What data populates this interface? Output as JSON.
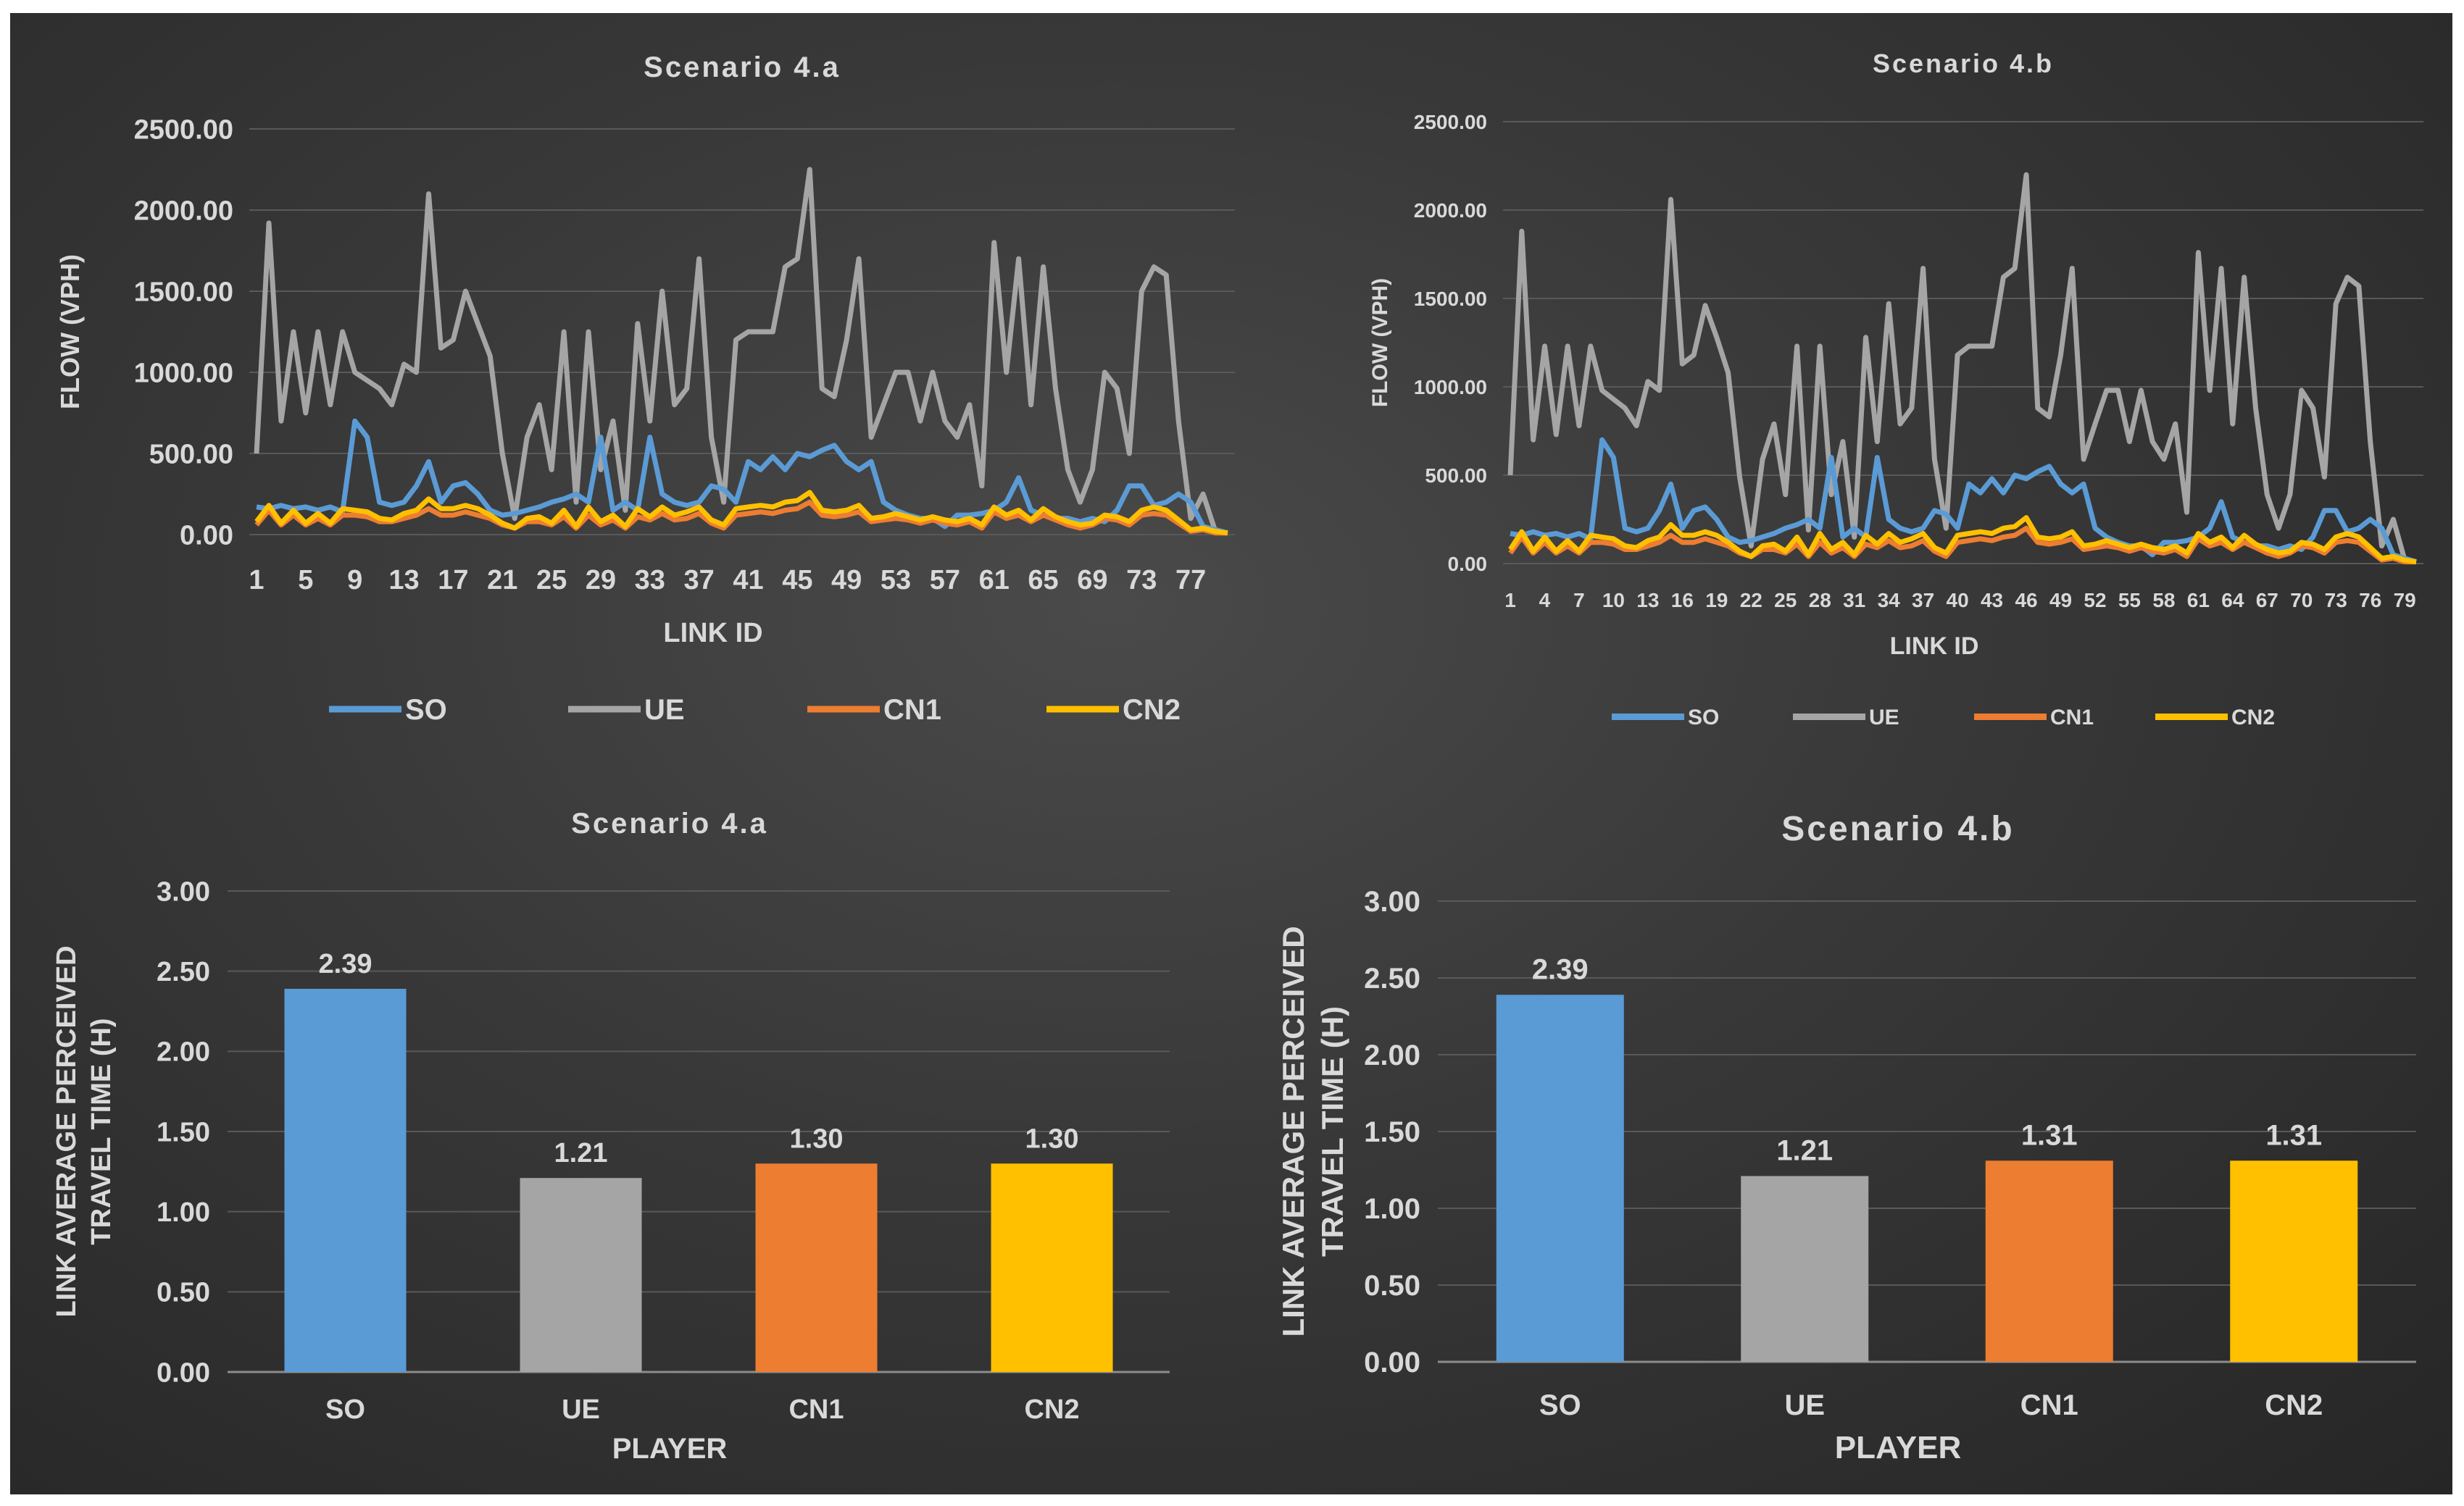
{
  "theme": {
    "background": "#333333",
    "text": "#d9d9d9",
    "grid": "#595959",
    "colors": {
      "SO": "#5b9bd5",
      "UE": "#a5a5a5",
      "CN1": "#ed7d31",
      "CN2": "#ffc000"
    }
  },
  "chart_data": [
    {
      "type": "line",
      "title": "Scenario 4.a",
      "xlabel": "LINK ID",
      "ylabel": "FLOW (VPH)",
      "ylim": [
        0,
        2500
      ],
      "yticks": [
        "0.00",
        "500.00",
        "1000.00",
        "1500.00",
        "2000.00",
        "2500.00"
      ],
      "xtick_labels": [
        "1",
        "5",
        "9",
        "13",
        "17",
        "21",
        "25",
        "29",
        "33",
        "37",
        "41",
        "45",
        "49",
        "53",
        "57",
        "61",
        "65",
        "69",
        "73",
        "77"
      ],
      "x": [
        1,
        2,
        3,
        4,
        5,
        6,
        7,
        8,
        9,
        10,
        11,
        12,
        13,
        14,
        15,
        16,
        17,
        18,
        19,
        20,
        21,
        22,
        23,
        24,
        25,
        26,
        27,
        28,
        29,
        30,
        31,
        32,
        33,
        34,
        35,
        36,
        37,
        38,
        39,
        40,
        41,
        42,
        43,
        44,
        45,
        46,
        47,
        48,
        49,
        50,
        51,
        52,
        53,
        54,
        55,
        56,
        57,
        58,
        59,
        60,
        61,
        62,
        63,
        64,
        65,
        66,
        67,
        68,
        69,
        70,
        71,
        72,
        73,
        74,
        75,
        76,
        77,
        78,
        79,
        80
      ],
      "legend": [
        "SO",
        "UE",
        "CN1",
        "CN2"
      ],
      "series": [
        {
          "name": "SO",
          "values": [
            170,
            160,
            180,
            160,
            170,
            150,
            170,
            140,
            700,
            600,
            200,
            180,
            200,
            300,
            450,
            200,
            300,
            320,
            250,
            150,
            120,
            130,
            150,
            170,
            200,
            220,
            250,
            200,
            600,
            150,
            200,
            150,
            600,
            250,
            200,
            180,
            200,
            300,
            280,
            200,
            450,
            400,
            480,
            400,
            500,
            480,
            520,
            550,
            450,
            400,
            450,
            200,
            150,
            120,
            100,
            100,
            50,
            120,
            120,
            130,
            150,
            200,
            350,
            150,
            120,
            100,
            100,
            80,
            100,
            80,
            150,
            300,
            300,
            180,
            200,
            250,
            200,
            50,
            30,
            10
          ]
        },
        {
          "name": "UE",
          "values": [
            500,
            1920,
            700,
            1250,
            750,
            1250,
            800,
            1250,
            1000,
            950,
            900,
            800,
            1050,
            1000,
            2100,
            1150,
            1200,
            1500,
            1300,
            1100,
            500,
            100,
            600,
            800,
            400,
            1250,
            200,
            1250,
            400,
            700,
            150,
            1300,
            700,
            1500,
            800,
            900,
            1700,
            600,
            200,
            1200,
            1250,
            1250,
            1250,
            1650,
            1700,
            2250,
            900,
            850,
            1200,
            1700,
            600,
            800,
            1000,
            1000,
            700,
            1000,
            700,
            600,
            800,
            300,
            1800,
            1000,
            1700,
            800,
            1650,
            900,
            400,
            200,
            400,
            1000,
            900,
            500,
            1500,
            1650,
            1600,
            700,
            100,
            250,
            20,
            10
          ]
        },
        {
          "name": "CN1",
          "values": [
            60,
            150,
            60,
            120,
            60,
            100,
            60,
            120,
            120,
            110,
            80,
            80,
            100,
            120,
            160,
            120,
            120,
            140,
            120,
            100,
            60,
            40,
            80,
            80,
            60,
            110,
            40,
            120,
            60,
            90,
            40,
            110,
            90,
            130,
            90,
            100,
            130,
            70,
            40,
            120,
            130,
            140,
            130,
            150,
            160,
            200,
            120,
            110,
            120,
            140,
            80,
            90,
            100,
            90,
            70,
            90,
            70,
            60,
            80,
            40,
            140,
            100,
            120,
            80,
            120,
            90,
            60,
            40,
            60,
            100,
            90,
            60,
            120,
            130,
            120,
            70,
            20,
            30,
            10,
            10
          ]
        },
        {
          "name": "CN2",
          "values": [
            80,
            180,
            70,
            150,
            70,
            130,
            70,
            160,
            150,
            140,
            100,
            90,
            130,
            150,
            220,
            160,
            160,
            180,
            160,
            120,
            70,
            40,
            100,
            110,
            70,
            150,
            50,
            170,
            80,
            120,
            50,
            160,
            110,
            170,
            120,
            140,
            170,
            90,
            60,
            160,
            170,
            180,
            170,
            200,
            210,
            260,
            150,
            140,
            150,
            180,
            100,
            110,
            130,
            110,
            90,
            110,
            90,
            80,
            100,
            60,
            170,
            120,
            150,
            90,
            160,
            110,
            80,
            60,
            70,
            120,
            110,
            80,
            150,
            170,
            150,
            90,
            30,
            40,
            20,
            10
          ]
        }
      ]
    },
    {
      "type": "line",
      "title": "Scenario 4.b",
      "xlabel": "LINK ID",
      "ylabel": "FLOW (VPH)",
      "ylim": [
        0,
        2500
      ],
      "yticks": [
        "0.00",
        "500.00",
        "1000.00",
        "1500.00",
        "2000.00",
        "2500.00"
      ],
      "xtick_labels": [
        "1",
        "4",
        "7",
        "10",
        "13",
        "16",
        "19",
        "22",
        "25",
        "28",
        "31",
        "34",
        "37",
        "40",
        "43",
        "46",
        "49",
        "52",
        "55",
        "58",
        "61",
        "64",
        "67",
        "70",
        "73",
        "76",
        "79"
      ],
      "x": [
        1,
        2,
        3,
        4,
        5,
        6,
        7,
        8,
        9,
        10,
        11,
        12,
        13,
        14,
        15,
        16,
        17,
        18,
        19,
        20,
        21,
        22,
        23,
        24,
        25,
        26,
        27,
        28,
        29,
        30,
        31,
        32,
        33,
        34,
        35,
        36,
        37,
        38,
        39,
        40,
        41,
        42,
        43,
        44,
        45,
        46,
        47,
        48,
        49,
        50,
        51,
        52,
        53,
        54,
        55,
        56,
        57,
        58,
        59,
        60,
        61,
        62,
        63,
        64,
        65,
        66,
        67,
        68,
        69,
        70,
        71,
        72,
        73,
        74,
        75,
        76,
        77,
        78,
        79,
        80
      ],
      "legend": [
        "SO",
        "UE",
        "CN1",
        "CN2"
      ],
      "series": [
        {
          "name": "SO",
          "values": [
            170,
            160,
            180,
            160,
            170,
            150,
            170,
            140,
            700,
            600,
            200,
            180,
            200,
            300,
            450,
            200,
            300,
            320,
            250,
            150,
            120,
            130,
            150,
            170,
            200,
            220,
            250,
            200,
            600,
            150,
            200,
            150,
            600,
            250,
            200,
            180,
            200,
            300,
            280,
            200,
            450,
            400,
            480,
            400,
            500,
            480,
            520,
            550,
            450,
            400,
            450,
            200,
            150,
            120,
            100,
            100,
            50,
            120,
            120,
            130,
            150,
            200,
            350,
            150,
            120,
            100,
            100,
            80,
            100,
            80,
            150,
            300,
            300,
            180,
            200,
            250,
            200,
            50,
            30,
            10
          ]
        },
        {
          "name": "UE",
          "values": [
            500,
            1880,
            700,
            1230,
            730,
            1230,
            780,
            1230,
            980,
            930,
            880,
            780,
            1030,
            980,
            2060,
            1130,
            1180,
            1460,
            1280,
            1080,
            490,
            100,
            590,
            790,
            390,
            1230,
            190,
            1230,
            390,
            690,
            150,
            1280,
            690,
            1470,
            790,
            880,
            1670,
            590,
            200,
            1180,
            1230,
            1230,
            1230,
            1620,
            1670,
            2200,
            880,
            830,
            1180,
            1670,
            590,
            790,
            980,
            980,
            690,
            980,
            690,
            590,
            790,
            290,
            1760,
            980,
            1670,
            790,
            1620,
            880,
            390,
            200,
            390,
            980,
            880,
            490,
            1470,
            1620,
            1570,
            690,
            100,
            250,
            20,
            10
          ]
        },
        {
          "name": "CN1",
          "values": [
            60,
            150,
            60,
            120,
            60,
            100,
            60,
            120,
            120,
            110,
            80,
            80,
            100,
            120,
            160,
            120,
            120,
            140,
            120,
            100,
            60,
            40,
            80,
            80,
            60,
            110,
            40,
            120,
            60,
            90,
            40,
            110,
            90,
            130,
            90,
            100,
            130,
            70,
            40,
            120,
            130,
            140,
            130,
            150,
            160,
            200,
            120,
            110,
            120,
            140,
            80,
            90,
            100,
            90,
            70,
            90,
            70,
            60,
            80,
            40,
            140,
            100,
            120,
            80,
            120,
            90,
            60,
            40,
            60,
            100,
            90,
            60,
            120,
            130,
            120,
            70,
            20,
            30,
            10,
            10
          ]
        },
        {
          "name": "CN2",
          "values": [
            80,
            180,
            70,
            150,
            70,
            130,
            70,
            160,
            150,
            140,
            100,
            90,
            130,
            150,
            220,
            160,
            160,
            180,
            160,
            120,
            70,
            40,
            100,
            110,
            70,
            150,
            50,
            170,
            80,
            120,
            50,
            160,
            110,
            170,
            120,
            140,
            170,
            90,
            60,
            160,
            170,
            180,
            170,
            200,
            210,
            260,
            150,
            140,
            150,
            180,
            100,
            110,
            130,
            110,
            90,
            110,
            90,
            80,
            100,
            60,
            170,
            120,
            150,
            90,
            160,
            110,
            80,
            60,
            70,
            120,
            110,
            80,
            150,
            170,
            150,
            90,
            30,
            40,
            20,
            10
          ]
        }
      ]
    },
    {
      "type": "bar",
      "title": "Scenario 4.a",
      "xlabel": "PLAYER",
      "ylabel": [
        "LINK AVERAGE PERCEIVED",
        "TRAVEL TIME (H)"
      ],
      "ylim": [
        0,
        3
      ],
      "yticks": [
        "0.00",
        "0.50",
        "1.00",
        "1.50",
        "2.00",
        "2.50",
        "3.00"
      ],
      "categories": [
        "SO",
        "UE",
        "CN1",
        "CN2"
      ],
      "values": [
        2.39,
        1.21,
        1.3,
        1.3
      ],
      "value_labels": [
        "2.39",
        "1.21",
        "1.30",
        "1.30"
      ]
    },
    {
      "type": "bar",
      "title": "Scenario 4.b",
      "xlabel": "PLAYER",
      "ylabel": [
        "LINK AVERAGE PERCEIVED",
        "TRAVEL TIME (H)"
      ],
      "ylim": [
        0,
        3
      ],
      "yticks": [
        "0.00",
        "0.50",
        "1.00",
        "1.50",
        "2.00",
        "2.50",
        "3.00"
      ],
      "categories": [
        "SO",
        "UE",
        "CN1",
        "CN2"
      ],
      "values": [
        2.39,
        1.21,
        1.31,
        1.31
      ],
      "value_labels": [
        "2.39",
        "1.21",
        "1.31",
        "1.31"
      ]
    }
  ]
}
